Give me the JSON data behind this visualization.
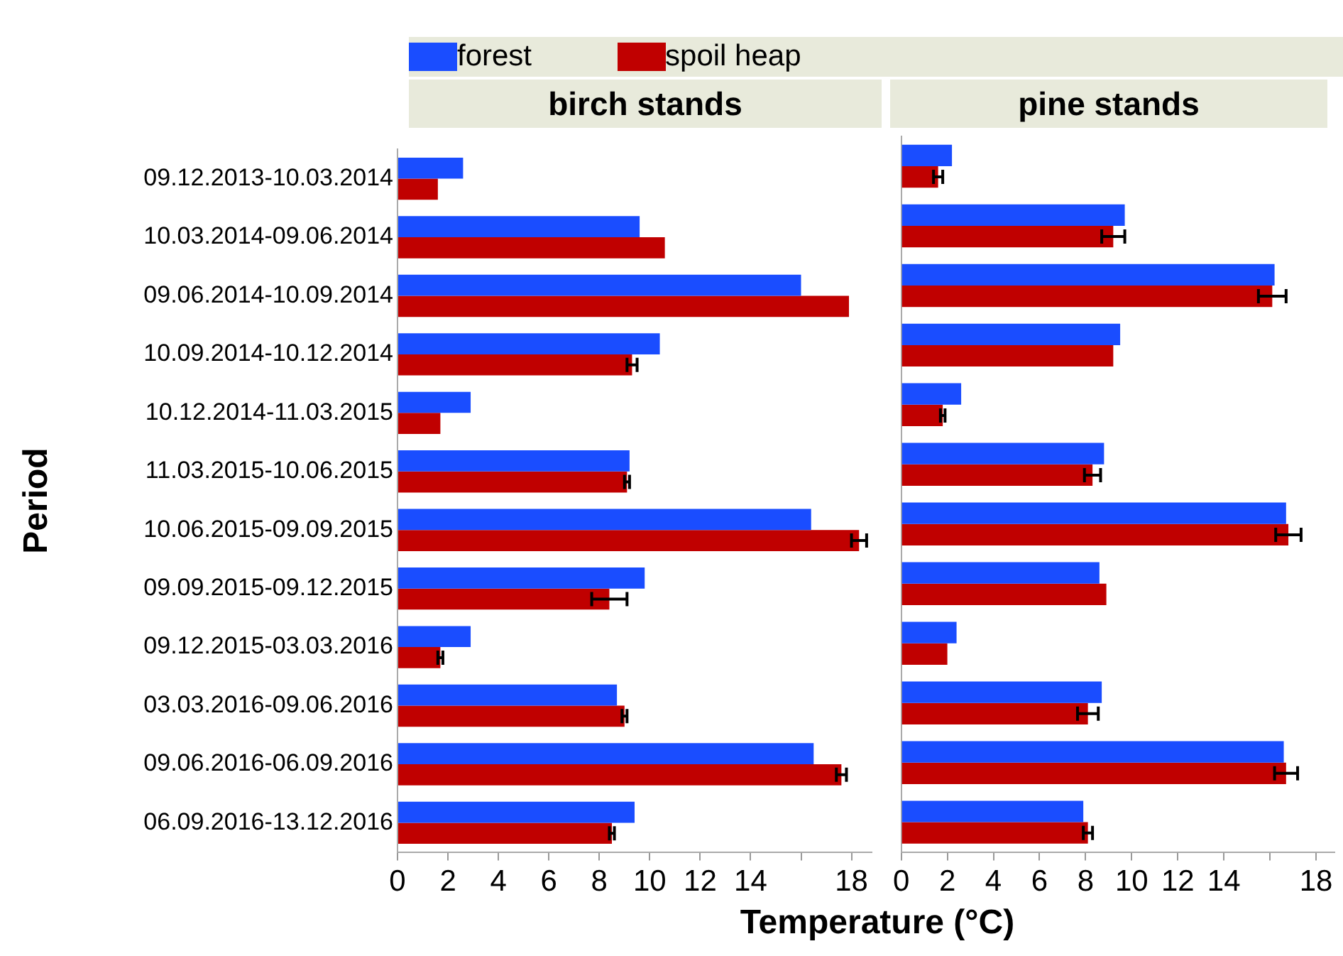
{
  "chart_data": [
    {
      "type": "bar",
      "orientation": "horizontal",
      "title": "birch stands",
      "xlabel": "Temperature (°C)",
      "ylabel": "Period",
      "legend": "top",
      "grid": false,
      "categories": [
        "09.12.2013-10.03.2014",
        "10.03.2014-09.06.2014",
        "09.06.2014-10.09.2014",
        "10.09.2014-10.12.2014",
        "10.12.2014-11.03.2015",
        "11.03.2015-10.06.2015",
        "10.06.2015-09.09.2015",
        "09.09.2015-09.12.2015",
        "09.12.2015-03.03.2016",
        "03.03.2016-09.06.2016",
        "09.06.2016-06.09.2016",
        "06.09.2016-13.12.2016"
      ],
      "series": [
        {
          "name": "forest",
          "color": "#1a4dff",
          "values": [
            2.6,
            9.6,
            16.0,
            10.4,
            2.9,
            9.2,
            16.4,
            9.8,
            2.9,
            8.7,
            16.5,
            9.4
          ]
        },
        {
          "name": "spoil heap",
          "color": "#c00000",
          "values": [
            1.6,
            10.6,
            17.9,
            9.3,
            1.7,
            9.1,
            18.3,
            8.4,
            1.7,
            9.0,
            17.6,
            8.5
          ],
          "errors": [
            null,
            null,
            null,
            0.2,
            null,
            0.1,
            0.3,
            0.7,
            0.1,
            0.1,
            0.2,
            0.1
          ]
        }
      ],
      "xlim": [
        0,
        18.8
      ],
      "xticks": [
        0,
        2,
        4,
        6,
        8,
        10,
        12,
        14,
        {
          "value": 16,
          "label": null
        },
        18
      ]
    },
    {
      "type": "bar",
      "orientation": "horizontal",
      "title": "pine stands",
      "grid": false,
      "tick_labels": "x",
      "categories": [
        null,
        null,
        null,
        null,
        null,
        null,
        null,
        null,
        null,
        null,
        null,
        null
      ],
      "series": [
        {
          "color": "#1a4dff",
          "values": [
            2.2,
            9.7,
            16.2,
            9.5,
            2.6,
            8.8,
            16.7,
            8.6,
            2.4,
            8.7,
            16.6,
            7.9
          ]
        },
        {
          "color": "#c00000",
          "values": [
            1.6,
            9.2,
            16.1,
            9.2,
            1.8,
            8.3,
            16.8,
            8.9,
            2.0,
            8.1,
            16.7,
            8.1
          ],
          "errors": [
            0.2,
            0.5,
            0.6,
            null,
            0.1,
            0.35,
            0.55,
            null,
            null,
            0.45,
            0.5,
            0.2
          ]
        }
      ],
      "xlim": [
        0,
        18.8
      ],
      "xticks": [
        0,
        2,
        4,
        6,
        8,
        10,
        12,
        14,
        {
          "value": 16,
          "label": null
        },
        18
      ]
    }
  ]
}
